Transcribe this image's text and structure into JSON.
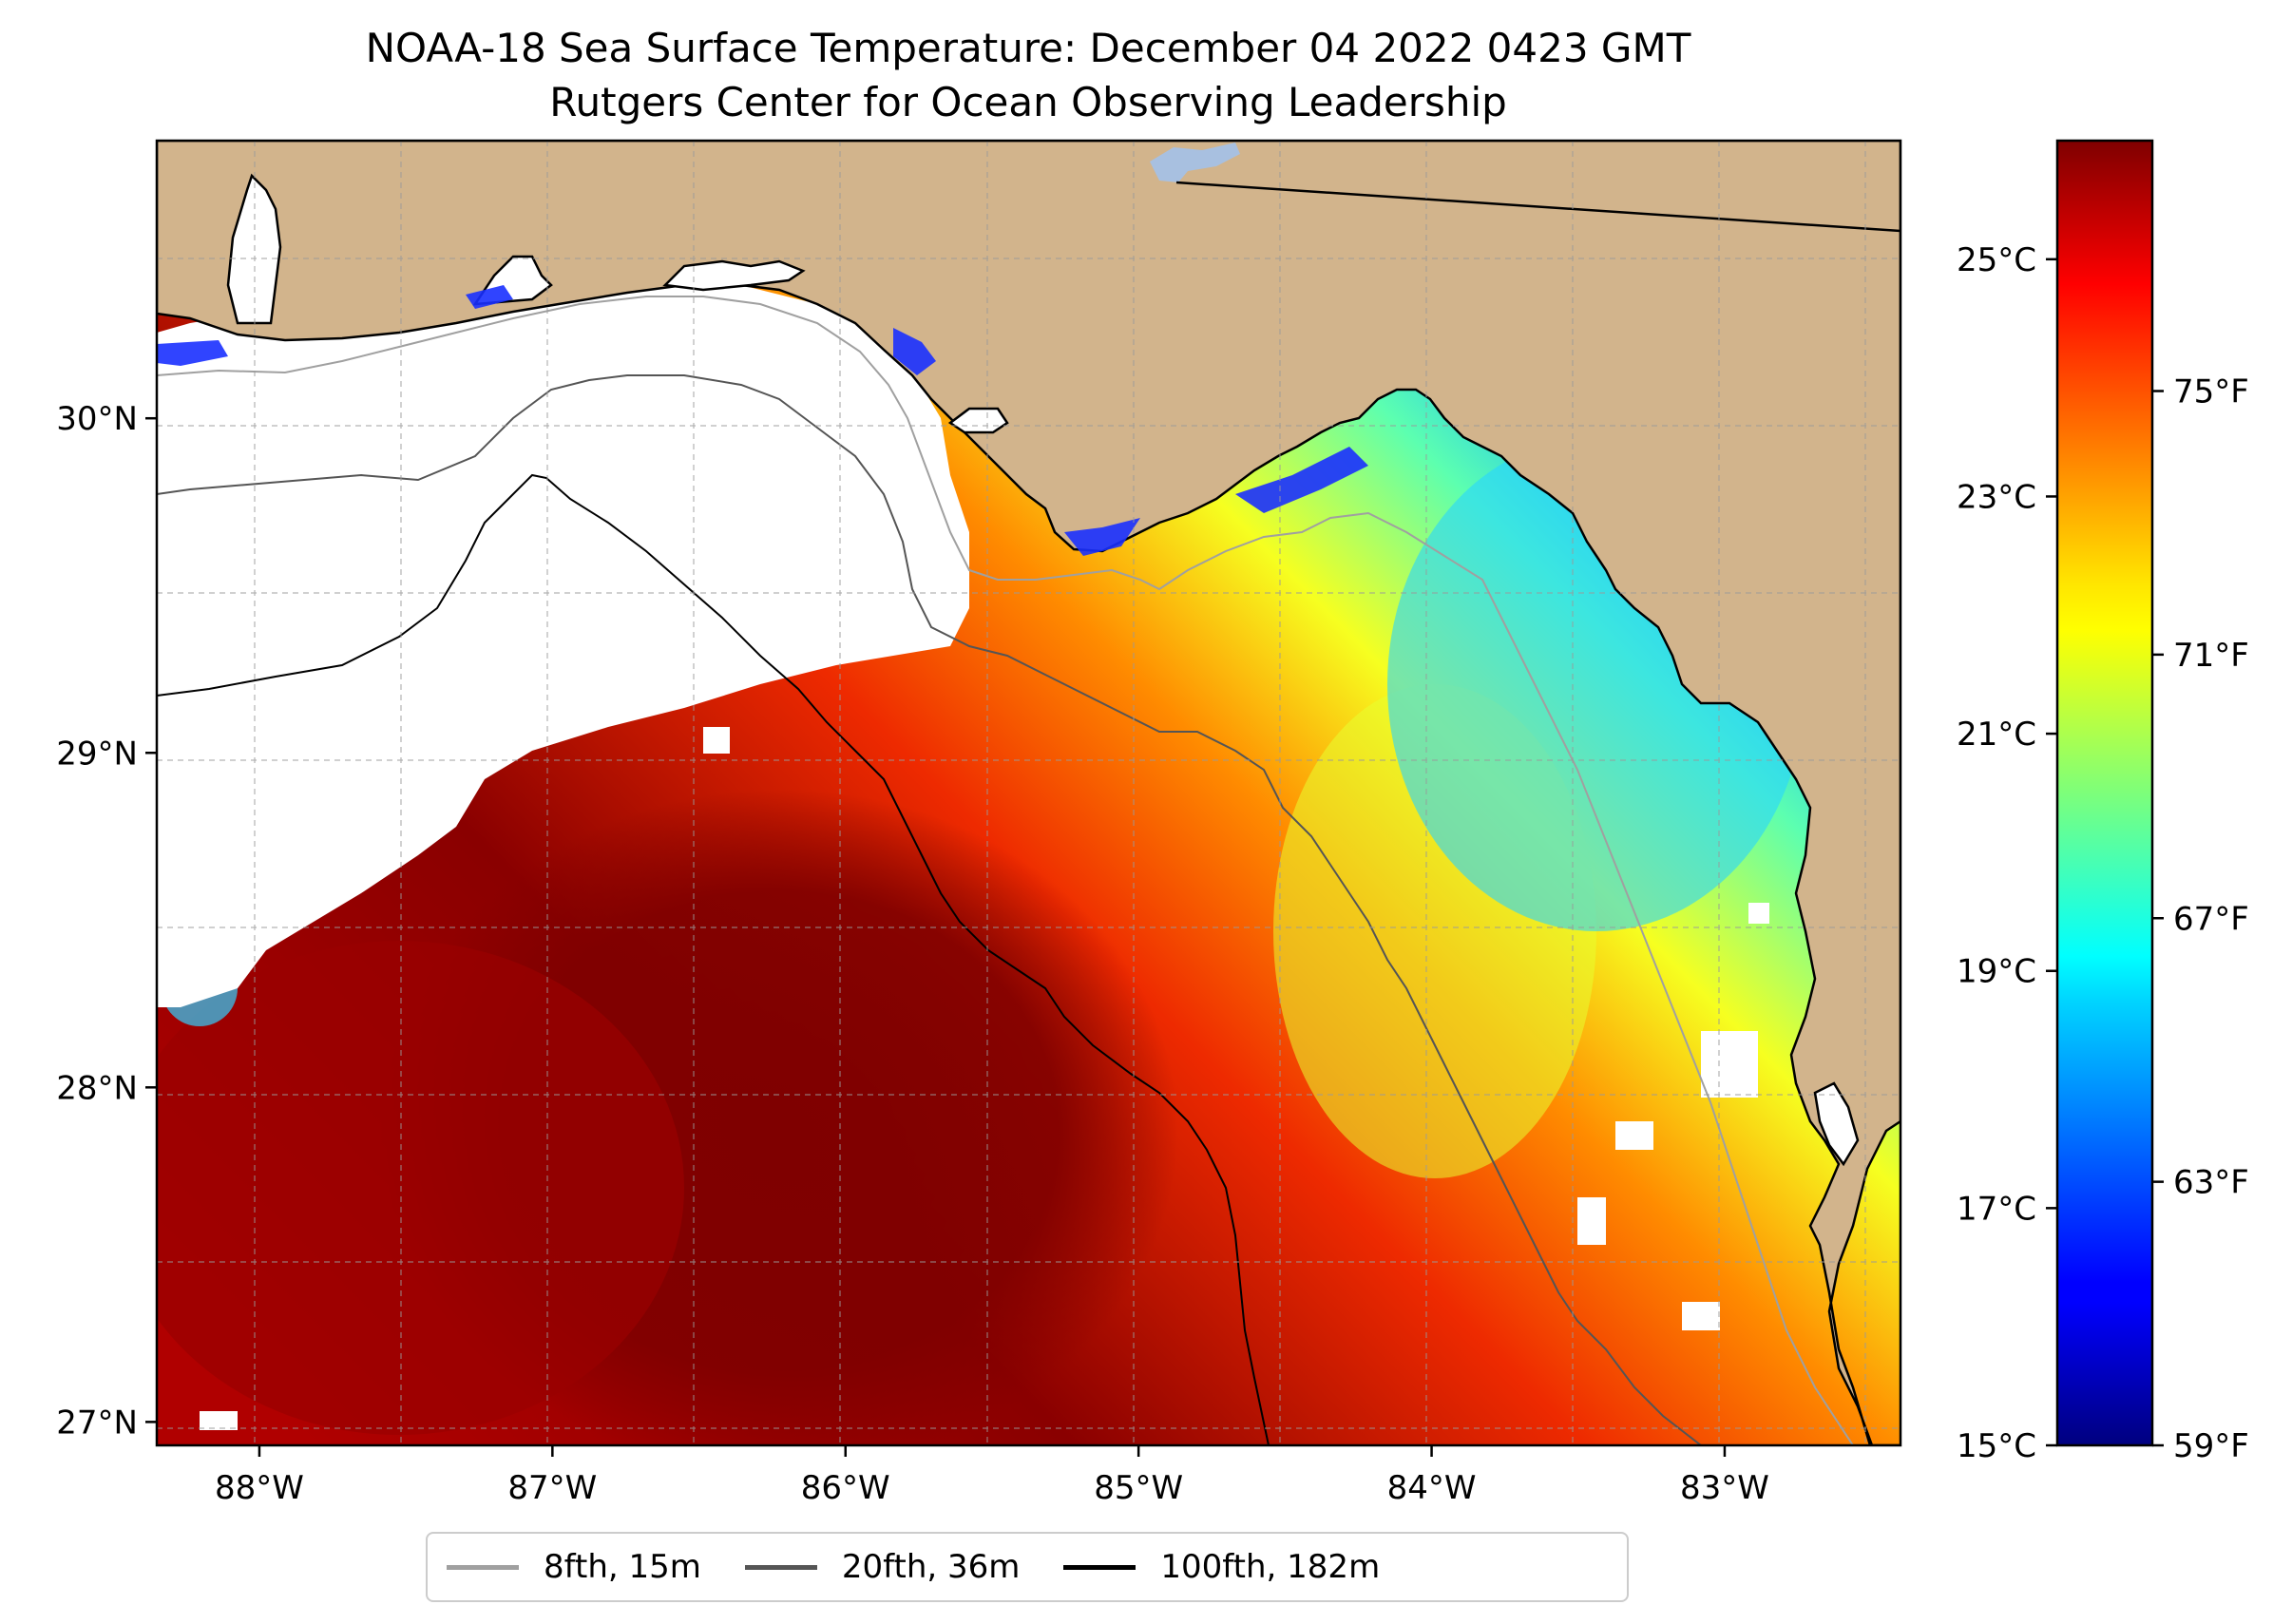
{
  "title": {
    "line1": "NOAA-18 Sea Surface Temperature: December 04 2022 0423 GMT",
    "line2": "Rutgers Center for Ocean Observing Leadership"
  },
  "map": {
    "lon_range": [
      -88.35,
      -82.4
    ],
    "lat_range": [
      26.93,
      30.83
    ],
    "x_ticks": [
      {
        "value": -88,
        "label": "88°W"
      },
      {
        "value": -87,
        "label": "87°W"
      },
      {
        "value": -86,
        "label": "86°W"
      },
      {
        "value": -85,
        "label": "85°W"
      },
      {
        "value": -84,
        "label": "84°W"
      },
      {
        "value": -83,
        "label": "83°W"
      }
    ],
    "y_ticks": [
      {
        "value": 27,
        "label": "27°N"
      },
      {
        "value": 28,
        "label": "28°N"
      },
      {
        "value": 29,
        "label": "29°N"
      },
      {
        "value": 30,
        "label": "30°N"
      }
    ],
    "gridlines": true,
    "land_color": "#d2b48c",
    "no_data_color": "#ffffff"
  },
  "colorbar": {
    "colormap": "jet",
    "celsius_range": [
      15,
      26
    ],
    "celsius_ticks": [
      {
        "value": 15,
        "label": "15°C"
      },
      {
        "value": 17,
        "label": "17°C"
      },
      {
        "value": 19,
        "label": "19°C"
      },
      {
        "value": 21,
        "label": "21°C"
      },
      {
        "value": 23,
        "label": "23°C"
      },
      {
        "value": 25,
        "label": "25°C"
      }
    ],
    "fahrenheit_ticks": [
      {
        "value": 59,
        "label": "59°F"
      },
      {
        "value": 63,
        "label": "63°F"
      },
      {
        "value": 67,
        "label": "67°F"
      },
      {
        "value": 71,
        "label": "71°F"
      },
      {
        "value": 75,
        "label": "75°F"
      }
    ]
  },
  "legend": {
    "items": [
      {
        "label": "8fth, 15m",
        "color": "#a0a0a0"
      },
      {
        "label": "20fth, 36m",
        "color": "#555555"
      },
      {
        "label": "100fth, 182m",
        "color": "#000000"
      }
    ]
  }
}
